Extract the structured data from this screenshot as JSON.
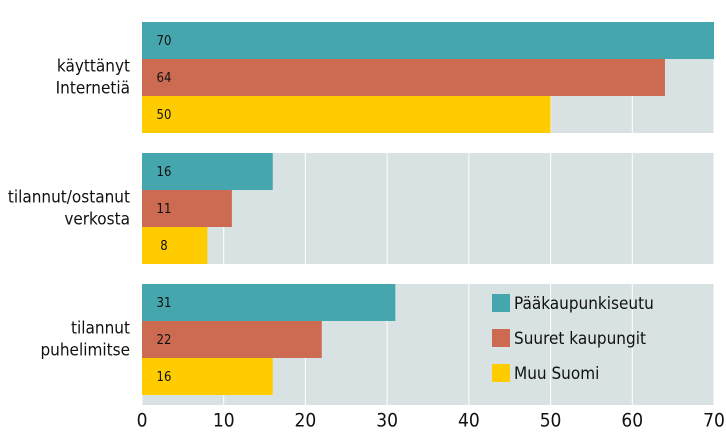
{
  "chart_data": {
    "type": "hbar",
    "categories": [
      [
        "käyttänyt",
        "Internetiä"
      ],
      [
        "tilannut/ostanut",
        "verkosta"
      ],
      [
        "tilannut",
        "puhelimitse"
      ]
    ],
    "series": [
      {
        "name": "Pääkaupunkiseutu",
        "color": "#45a6ae",
        "values": [
          70,
          16,
          31
        ]
      },
      {
        "name": "Suuret kaupungit",
        "color": "#cc6b52",
        "values": [
          64,
          11,
          22
        ]
      },
      {
        "name": "Muu Suomi",
        "color": "#ffcc00",
        "values": [
          50,
          8,
          16
        ]
      }
    ],
    "xlim": [
      0,
      70
    ],
    "xticks": [
      0,
      10,
      20,
      30,
      40,
      50,
      60,
      70
    ],
    "grid": true,
    "legend": "lower right"
  }
}
